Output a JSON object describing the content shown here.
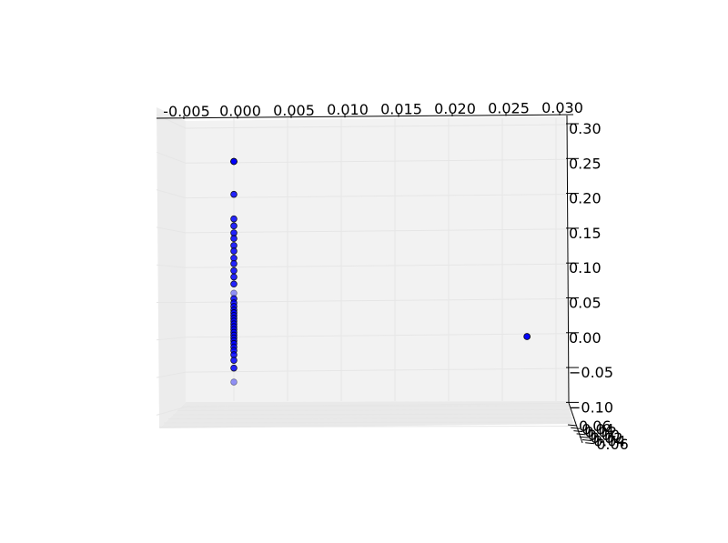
{
  "chart_data": {
    "type": "scatter",
    "projection": "3d",
    "colors": {
      "marker_fill": "#0000ff",
      "marker_edge": "#000000",
      "pane": "#f2f2f2",
      "grid": "#e6e6e6"
    },
    "x_ticks": [
      "-0.005",
      "0.000",
      "0.005",
      "0.010",
      "0.015",
      "0.020",
      "0.025",
      "0.030"
    ],
    "z_ticks": [
      "0.30",
      "0.25",
      "0.20",
      "0.15",
      "0.10",
      "0.05",
      "0.00",
      "−0.05",
      "−0.10"
    ],
    "y_ticks": [
      "0.06",
      "0.04",
      "0.02",
      "0.00",
      "0.02",
      "0.04",
      "0.06"
    ],
    "xlim": [
      -0.0055,
      0.0305
    ],
    "zlim": [
      -0.1,
      0.3
    ],
    "series": [
      {
        "points": [
          {
            "x": 0.0,
            "z": 0.25
          },
          {
            "x": 0.0,
            "z": 0.25
          },
          {
            "x": 0.0,
            "z": 0.25
          },
          {
            "x": 0.0,
            "z": 0.203
          },
          {
            "x": 0.0,
            "z": 0.168
          },
          {
            "x": 0.0,
            "z": 0.158
          },
          {
            "x": 0.0,
            "z": 0.148
          },
          {
            "x": 0.0,
            "z": 0.14
          },
          {
            "x": 0.0,
            "z": 0.13
          },
          {
            "x": 0.0,
            "z": 0.122
          },
          {
            "x": 0.0,
            "z": 0.112
          },
          {
            "x": 0.0,
            "z": 0.104
          },
          {
            "x": 0.0,
            "z": 0.094
          },
          {
            "x": 0.0,
            "z": 0.085
          },
          {
            "x": 0.0,
            "z": 0.075
          },
          {
            "x": 0.0,
            "z": 0.062
          },
          {
            "x": 0.0,
            "z": 0.054
          },
          {
            "x": 0.0,
            "z": 0.048
          },
          {
            "x": 0.0,
            "z": 0.043
          },
          {
            "x": 0.0,
            "z": 0.038
          },
          {
            "x": 0.0,
            "z": 0.034
          },
          {
            "x": 0.0,
            "z": 0.03
          },
          {
            "x": 0.0,
            "z": 0.026
          },
          {
            "x": 0.0,
            "z": 0.022
          },
          {
            "x": 0.0,
            "z": 0.018
          },
          {
            "x": 0.0,
            "z": 0.014
          },
          {
            "x": 0.0,
            "z": 0.01
          },
          {
            "x": 0.0,
            "z": 0.006
          },
          {
            "x": 0.0,
            "z": 0.002
          },
          {
            "x": 0.0,
            "z": -0.002
          },
          {
            "x": 0.0,
            "z": -0.006
          },
          {
            "x": 0.0,
            "z": -0.01
          },
          {
            "x": 0.0,
            "z": -0.015
          },
          {
            "x": 0.0,
            "z": -0.02
          },
          {
            "x": 0.0,
            "z": -0.026
          },
          {
            "x": 0.0,
            "z": -0.034
          },
          {
            "x": 0.0,
            "z": -0.045
          },
          {
            "x": 0.0,
            "z": -0.065
          },
          {
            "x": 0.0273,
            "z": 0.0
          },
          {
            "x": 0.0273,
            "z": 0.0
          }
        ]
      }
    ]
  }
}
